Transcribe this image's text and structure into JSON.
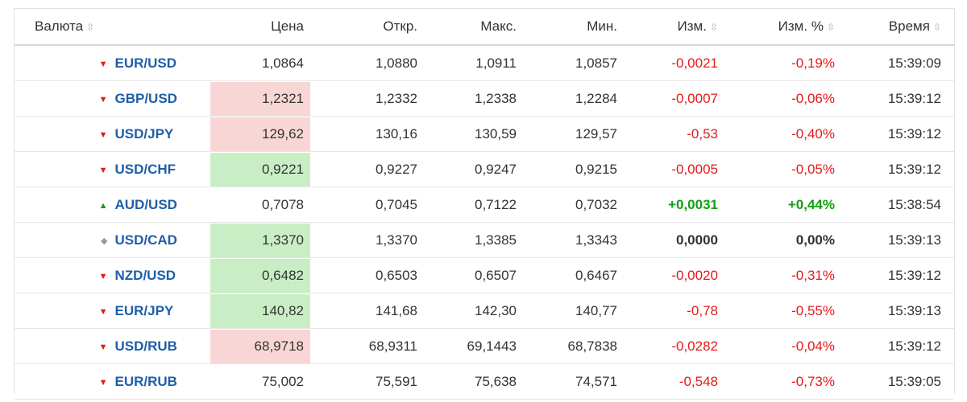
{
  "header": {
    "currency": "Валюта",
    "price": "Цена",
    "open": "Откр.",
    "high": "Макс.",
    "low": "Мин.",
    "change": "Изм.",
    "change_pct": "Изм. %",
    "time": "Время",
    "sort_glyph": "⇳"
  },
  "colors": {
    "pair_link": "#1f5ea8",
    "negative": "#e61919",
    "positive": "#11a011",
    "highlight_down": "#f9d6d6",
    "highlight_up": "#c9eec6"
  },
  "rows": [
    {
      "direction": "down",
      "arrow": "▼",
      "pair": "EUR/USD",
      "price": "1,0864",
      "price_flash": "none",
      "open": "1,0880",
      "high": "1,0911",
      "low": "1,0857",
      "change": "-0,0021",
      "change_pct": "-0,19%",
      "time": "15:39:09"
    },
    {
      "direction": "down",
      "arrow": "▼",
      "pair": "GBP/USD",
      "price": "1,2321",
      "price_flash": "red",
      "open": "1,2332",
      "high": "1,2338",
      "low": "1,2284",
      "change": "-0,0007",
      "change_pct": "-0,06%",
      "time": "15:39:12"
    },
    {
      "direction": "down",
      "arrow": "▼",
      "pair": "USD/JPY",
      "price": "129,62",
      "price_flash": "red",
      "open": "130,16",
      "high": "130,59",
      "low": "129,57",
      "change": "-0,53",
      "change_pct": "-0,40%",
      "time": "15:39:12"
    },
    {
      "direction": "down",
      "arrow": "▼",
      "pair": "USD/CHF",
      "price": "0,9221",
      "price_flash": "green",
      "open": "0,9227",
      "high": "0,9247",
      "low": "0,9215",
      "change": "-0,0005",
      "change_pct": "-0,05%",
      "time": "15:39:12"
    },
    {
      "direction": "up",
      "arrow": "▲",
      "pair": "AUD/USD",
      "price": "0,7078",
      "price_flash": "none",
      "open": "0,7045",
      "high": "0,7122",
      "low": "0,7032",
      "change": "+0,0031",
      "change_pct": "+0,44%",
      "time": "15:38:54"
    },
    {
      "direction": "flat",
      "arrow": "◆",
      "pair": "USD/CAD",
      "price": "1,3370",
      "price_flash": "green",
      "open": "1,3370",
      "high": "1,3385",
      "low": "1,3343",
      "change": "0,0000",
      "change_pct": "0,00%",
      "time": "15:39:13"
    },
    {
      "direction": "down",
      "arrow": "▼",
      "pair": "NZD/USD",
      "price": "0,6482",
      "price_flash": "green",
      "open": "0,6503",
      "high": "0,6507",
      "low": "0,6467",
      "change": "-0,0020",
      "change_pct": "-0,31%",
      "time": "15:39:12"
    },
    {
      "direction": "down",
      "arrow": "▼",
      "pair": "EUR/JPY",
      "price": "140,82",
      "price_flash": "green",
      "open": "141,68",
      "high": "142,30",
      "low": "140,77",
      "change": "-0,78",
      "change_pct": "-0,55%",
      "time": "15:39:13"
    },
    {
      "direction": "down",
      "arrow": "▼",
      "pair": "USD/RUB",
      "price": "68,9718",
      "price_flash": "red",
      "open": "68,9311",
      "high": "69,1443",
      "low": "68,7838",
      "change": "-0,0282",
      "change_pct": "-0,04%",
      "time": "15:39:12"
    },
    {
      "direction": "down",
      "arrow": "▼",
      "pair": "EUR/RUB",
      "price": "75,002",
      "price_flash": "none",
      "open": "75,591",
      "high": "75,638",
      "low": "74,571",
      "change": "-0,548",
      "change_pct": "-0,73%",
      "time": "15:39:05"
    }
  ]
}
